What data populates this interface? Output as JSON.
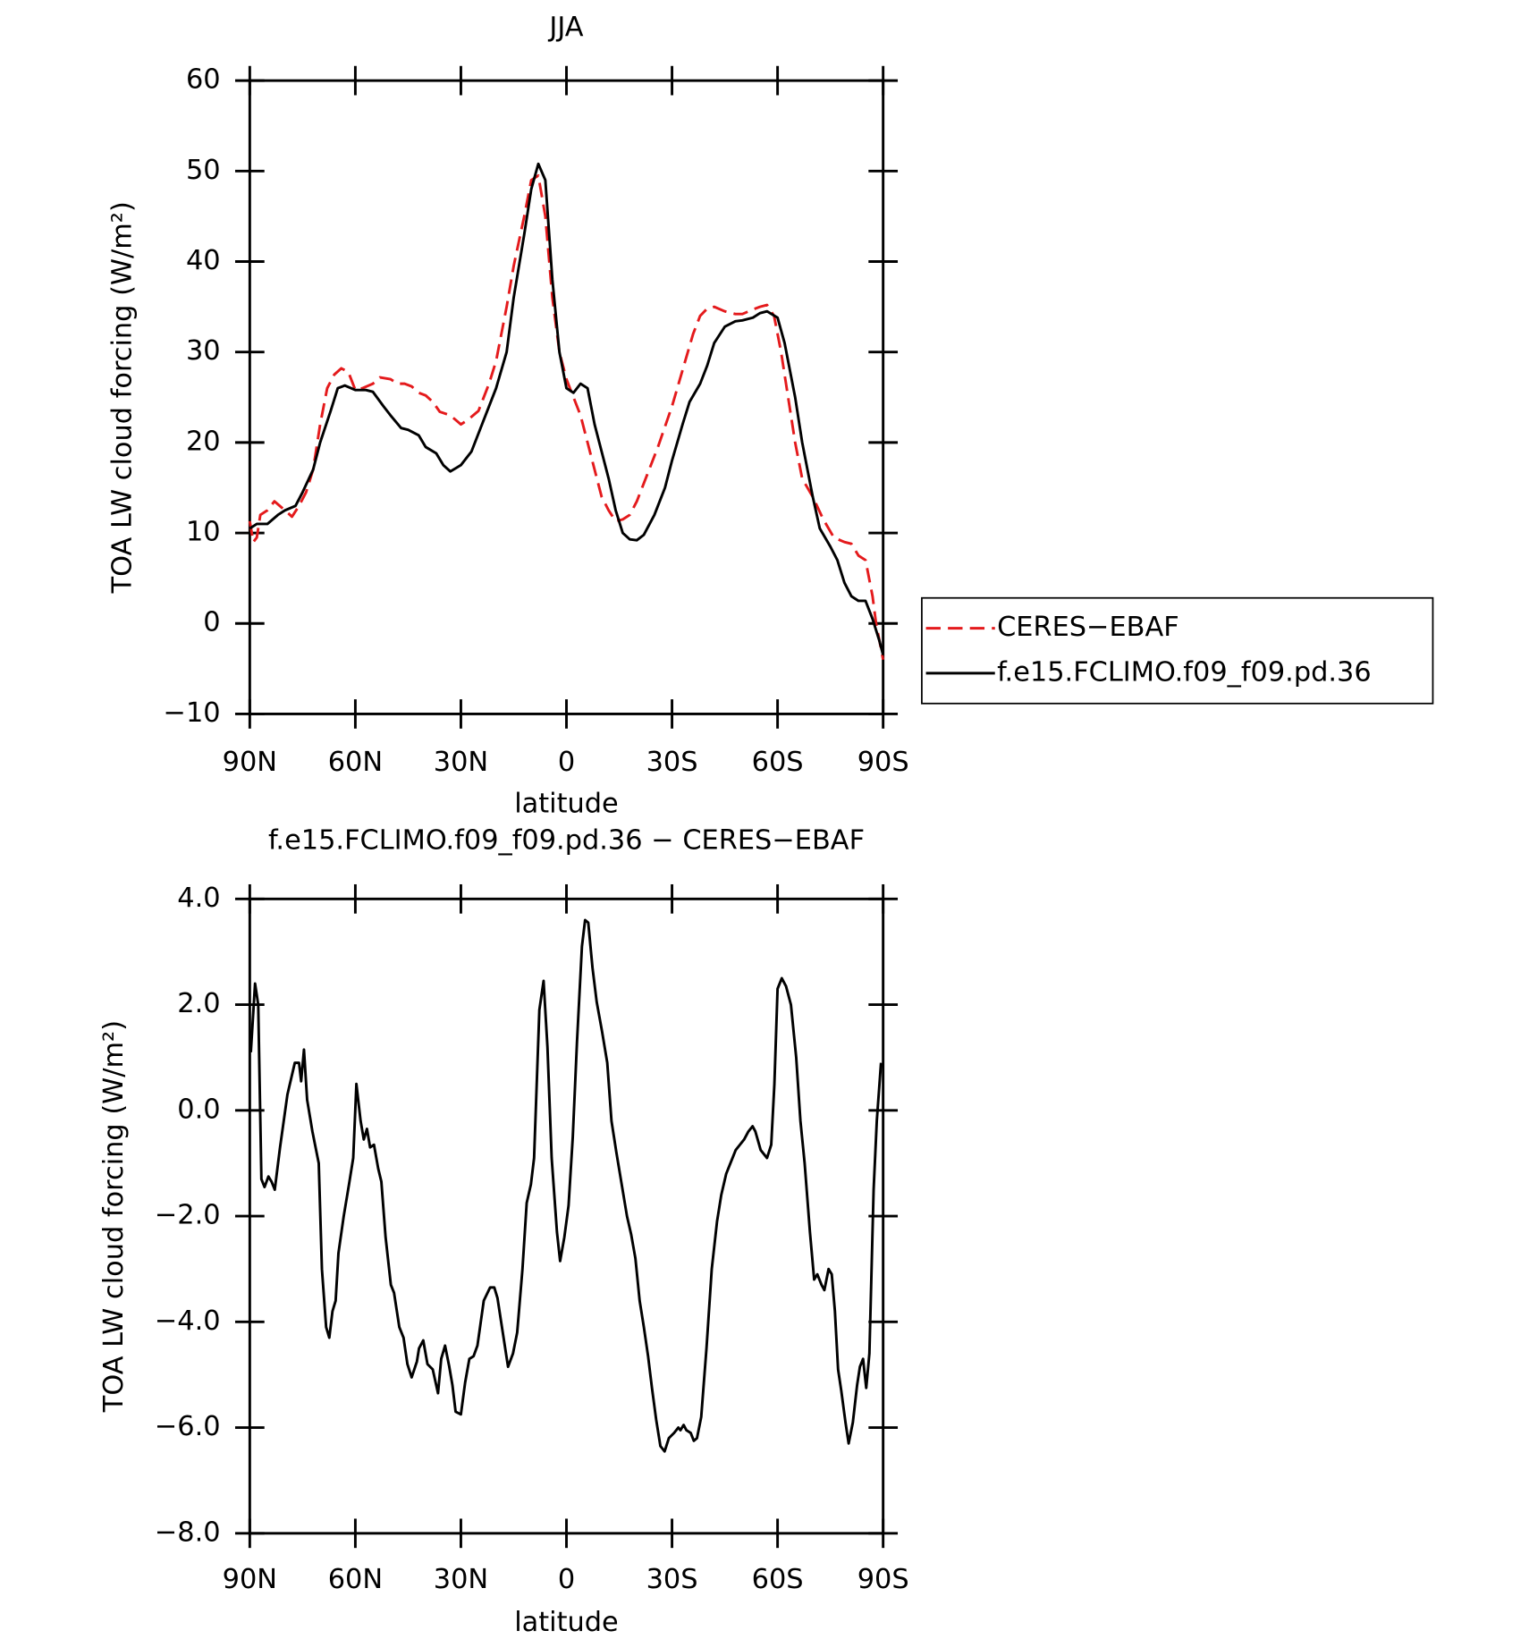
{
  "chart_data": [
    {
      "type": "line",
      "title": "JJA",
      "xlabel": "latitude",
      "ylabel": "TOA LW cloud forcing (W/m²)",
      "xlim": [
        90,
        -90
      ],
      "xticks": [
        {
          "value": 90,
          "label": "90N"
        },
        {
          "value": 60,
          "label": "60N"
        },
        {
          "value": 30,
          "label": "30N"
        },
        0,
        {
          "value": -30,
          "label": "30S"
        },
        {
          "value": -60,
          "label": "60S"
        },
        {
          "value": -90,
          "label": "90S"
        }
      ],
      "ylim": [
        -10,
        60
      ],
      "yticks": [
        {
          "value": -10,
          "label": "−10"
        },
        0,
        10,
        20,
        30,
        40,
        50,
        60
      ],
      "legend": "right",
      "series": [
        {
          "name": "CERES−EBAF",
          "color": "#e41a1c",
          "style": "dashed",
          "x": [
            90,
            89,
            88,
            87,
            85,
            83,
            80,
            78,
            76,
            74,
            72,
            70,
            68,
            66,
            64,
            62,
            60,
            58,
            55,
            53,
            50,
            48,
            46,
            44,
            42,
            40,
            38,
            36,
            33,
            30,
            28,
            25,
            22,
            20,
            17,
            15,
            12,
            10,
            8,
            6,
            4,
            2,
            0,
            -2,
            -4,
            -6,
            -8,
            -10,
            -12,
            -14,
            -16,
            -18,
            -20,
            -23,
            -26,
            -30,
            -33,
            -36,
            -38,
            -40,
            -42,
            -45,
            -48,
            -50,
            -53,
            -55,
            -57,
            -59,
            -61,
            -63,
            -65,
            -67,
            -70,
            -73,
            -76,
            -79,
            -81,
            -83,
            -85,
            -87,
            -88,
            -90
          ],
          "values": [
            11.3,
            9,
            9.5,
            12,
            12.5,
            13.5,
            12.5,
            11.8,
            13,
            14.5,
            17,
            22,
            26,
            27.5,
            28.2,
            27.8,
            25.8,
            26,
            26.5,
            27.2,
            27,
            26.5,
            26.5,
            26.2,
            25.5,
            25.2,
            24.5,
            23.4,
            23,
            22,
            22.5,
            23.5,
            26.5,
            29,
            35,
            39.5,
            45,
            49,
            49.5,
            45,
            36,
            30,
            27,
            25,
            23,
            20,
            17,
            14,
            12.5,
            11.3,
            11.5,
            12,
            13.5,
            16.5,
            19.5,
            24,
            28,
            32,
            34,
            34.8,
            35,
            34.5,
            34.2,
            34.2,
            34.7,
            35,
            35.2,
            34,
            30,
            25,
            20,
            16,
            14,
            11.5,
            9.5,
            9,
            8.8,
            7.5,
            7,
            3,
            0,
            -4
          ]
        },
        {
          "name": "f.e15.FCLIMO.f09_f09.pd.36",
          "color": "#000000",
          "style": "solid",
          "x": [
            90,
            88,
            85,
            82,
            80,
            77,
            75,
            72,
            70,
            67,
            65,
            63,
            60,
            57,
            55,
            52,
            50,
            47,
            45,
            42,
            40,
            37,
            35,
            33,
            30,
            27,
            25,
            22,
            20,
            17,
            15,
            12,
            10,
            8,
            6,
            4,
            2,
            0,
            -2,
            -4,
            -6,
            -8,
            -10,
            -12,
            -14,
            -16,
            -18,
            -20,
            -22,
            -25,
            -28,
            -30,
            -33,
            -35,
            -38,
            -40,
            -42,
            -45,
            -48,
            -50,
            -53,
            -55,
            -57,
            -60,
            -62,
            -65,
            -67,
            -70,
            -72,
            -75,
            -77,
            -79,
            -81,
            -83,
            -85,
            -87,
            -89,
            -90
          ],
          "values": [
            10.5,
            11,
            11,
            12,
            12.5,
            13,
            14.5,
            17,
            20,
            23.5,
            26,
            26.3,
            25.8,
            25.8,
            25.6,
            24,
            23,
            21.6,
            21.4,
            20.8,
            19.5,
            18.8,
            17.5,
            16.8,
            17.5,
            19,
            21,
            24,
            26,
            30,
            36,
            43,
            48,
            50.8,
            49,
            38,
            30,
            26,
            25.5,
            26.5,
            26,
            22,
            19,
            16,
            12.5,
            10,
            9.3,
            9.2,
            9.8,
            12,
            15,
            18,
            22,
            24.5,
            26.5,
            28.5,
            31,
            32.8,
            33.4,
            33.5,
            33.8,
            34.3,
            34.5,
            33.8,
            31,
            25,
            20,
            14,
            10.5,
            8.5,
            7,
            4.5,
            3,
            2.5,
            2.5,
            0.5,
            -2,
            -3.5
          ]
        }
      ]
    },
    {
      "type": "line",
      "title": "f.e15.FCLIMO.f09_f09.pd.36 − CERES−EBAF",
      "xlabel": "latitude",
      "ylabel": "TOA LW cloud forcing (W/m²)",
      "xlim": [
        90,
        -90
      ],
      "xticks": [
        {
          "value": 90,
          "label": "90N"
        },
        {
          "value": 60,
          "label": "60N"
        },
        {
          "value": 30,
          "label": "30N"
        },
        0,
        {
          "value": -30,
          "label": "30S"
        },
        {
          "value": -60,
          "label": "60S"
        },
        {
          "value": -90,
          "label": "90S"
        }
      ],
      "ylim": [
        -8,
        4
      ],
      "yticks": [
        {
          "value": -8,
          "label": "−8.0"
        },
        {
          "value": -6,
          "label": "−6.0"
        },
        {
          "value": -4,
          "label": "−4.0"
        },
        {
          "value": -2,
          "label": "−2.0"
        },
        {
          "value": 0,
          "label": "0.0"
        },
        {
          "value": 2,
          "label": "2.0"
        },
        {
          "value": 4,
          "label": "4.0"
        }
      ],
      "series": [
        {
          "color": "#000000",
          "style": "solid",
          "x": [
            89.7,
            88.5,
            87.6,
            86.7,
            85.8,
            84.7,
            83.8,
            82.9,
            81.4,
            79.3,
            77.2,
            76,
            75.4,
            74.6,
            73.7,
            72.2,
            70.4,
            69.5,
            68.3,
            67.4,
            66.5,
            65.6,
            64.8,
            63.3,
            61.8,
            60.6,
            59.7,
            58.5,
            57.6,
            56.7,
            55.8,
            54.7,
            53.5,
            52.6,
            51.4,
            49.9,
            49,
            47.5,
            46.3,
            45.2,
            44,
            42.5,
            41.9,
            40.7,
            39.5,
            38,
            36.5,
            35.6,
            34.5,
            33.3,
            32.4,
            31.5,
            30,
            28.8,
            27.6,
            26.4,
            25.3,
            23.5,
            21.7,
            20.5,
            19.6,
            18.1,
            16.6,
            15.2,
            14,
            12.5,
            11.3,
            10.1,
            9.2,
            7.7,
            6.5,
            5.4,
            4.2,
            2.7,
            1.8,
            0.6,
            -0.6,
            -1.8,
            -3,
            -4.4,
            -5.3,
            -6.2,
            -7.4,
            -8.6,
            -10.1,
            -11.6,
            -12.8,
            -14.2,
            -15.7,
            -17.2,
            -18.4,
            -19.6,
            -20.8,
            -22,
            -23.2,
            -24.3,
            -25.5,
            -26.7,
            -27.9,
            -29.1,
            -30.6,
            -31.8,
            -32.4,
            -33.3,
            -34.1,
            -35.3,
            -36.2,
            -37.1,
            -38.3,
            -39.8,
            -41.3,
            -42.8,
            -44,
            -45.4,
            -46.6,
            -48.1,
            -49.3,
            -50.5,
            -51.7,
            -52.9,
            -53.7,
            -55.2,
            -57,
            -58.2,
            -59.1,
            -60,
            -61.2,
            -62.4,
            -63.8,
            -65.3,
            -66.5,
            -67.7,
            -69.2,
            -70.4,
            -71.3,
            -72.5,
            -73.3,
            -74.5,
            -75.4,
            -76.3,
            -77.2,
            -78.1,
            -79.3,
            -80.2,
            -81.4,
            -82.6,
            -83.4,
            -84.3,
            -85.2,
            -86.1,
            -87.3,
            -88.2,
            -89.4
          ],
          "values": [
            1.1,
            2.4,
            2.0,
            -1.3,
            -1.45,
            -1.25,
            -1.35,
            -1.5,
            -0.7,
            0.3,
            0.9,
            0.9,
            0.55,
            1.15,
            0.2,
            -0.4,
            -1.0,
            -3.0,
            -4.1,
            -4.3,
            -3.8,
            -3.6,
            -2.7,
            -2.0,
            -1.4,
            -0.9,
            0.5,
            -0.2,
            -0.55,
            -0.35,
            -0.7,
            -0.65,
            -1.1,
            -1.35,
            -2.4,
            -3.3,
            -3.45,
            -4.1,
            -4.3,
            -4.8,
            -5.05,
            -4.75,
            -4.5,
            -4.35,
            -4.8,
            -4.9,
            -5.35,
            -4.7,
            -4.45,
            -4.85,
            -5.2,
            -5.7,
            -5.75,
            -5.15,
            -4.7,
            -4.65,
            -4.45,
            -3.6,
            -3.35,
            -3.35,
            -3.55,
            -4.2,
            -4.85,
            -4.6,
            -4.2,
            -3.0,
            -1.75,
            -1.4,
            -0.9,
            1.9,
            2.45,
            1.2,
            -0.9,
            -2.3,
            -2.85,
            -2.4,
            -1.8,
            -0.5,
            1.3,
            3.1,
            3.6,
            3.55,
            2.7,
            2.05,
            1.5,
            0.9,
            -0.2,
            -0.8,
            -1.4,
            -2.0,
            -2.35,
            -2.8,
            -3.6,
            -4.1,
            -4.65,
            -5.25,
            -5.85,
            -6.35,
            -6.45,
            -6.2,
            -6.1,
            -6.0,
            -6.05,
            -5.95,
            -6.05,
            -6.1,
            -6.25,
            -6.2,
            -5.8,
            -4.5,
            -3.0,
            -2.1,
            -1.6,
            -1.2,
            -1.0,
            -0.75,
            -0.65,
            -0.55,
            -0.4,
            -0.3,
            -0.4,
            -0.75,
            -0.9,
            -0.65,
            0.5,
            2.3,
            2.5,
            2.35,
            2.0,
            1.0,
            -0.2,
            -1.0,
            -2.3,
            -3.2,
            -3.1,
            -3.3,
            -3.4,
            -3.0,
            -3.1,
            -3.8,
            -4.9,
            -5.3,
            -5.9,
            -6.3,
            -5.9,
            -5.2,
            -4.85,
            -4.7,
            -5.25,
            -4.6,
            -1.5,
            -0.2,
            0.9
          ]
        }
      ]
    }
  ]
}
